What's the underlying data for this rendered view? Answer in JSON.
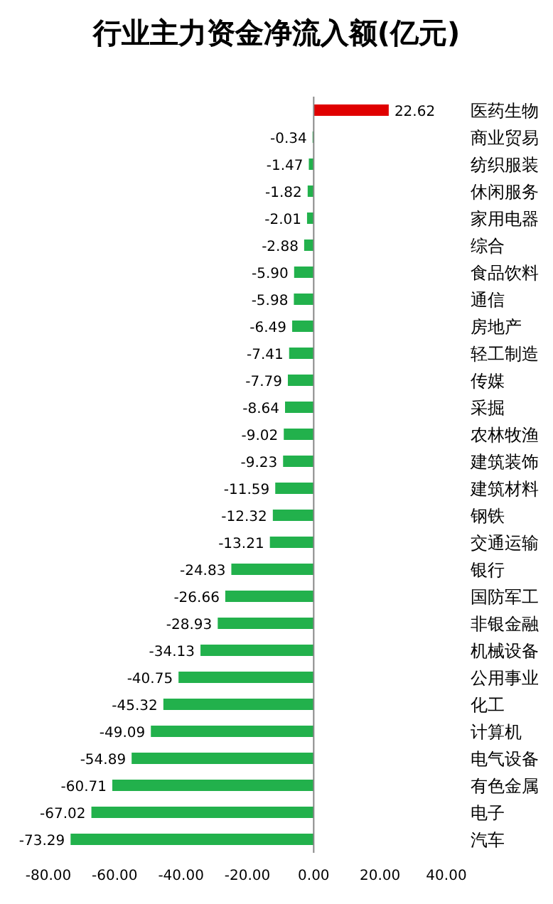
{
  "chart_data": {
    "type": "bar",
    "orientation": "horizontal",
    "title": "行业主力资金净流入额(亿元)",
    "categories": [
      "医药生物",
      "商业贸易",
      "纺织服装",
      "休闲服务",
      "家用电器",
      "综合",
      "食品饮料",
      "通信",
      "房地产",
      "轻工制造",
      "传媒",
      "采掘",
      "农林牧渔",
      "建筑装饰",
      "建筑材料",
      "钢铁",
      "交通运输",
      "银行",
      "国防军工",
      "非银金融",
      "机械设备",
      "公用事业",
      "化工",
      "计算机",
      "电气设备",
      "有色金属",
      "电子",
      "汽车"
    ],
    "values": [
      22.62,
      -0.34,
      -1.47,
      -1.82,
      -2.01,
      -2.88,
      -5.9,
      -5.98,
      -6.49,
      -7.41,
      -7.79,
      -8.64,
      -9.02,
      -9.23,
      -11.59,
      -12.32,
      -13.21,
      -24.83,
      -26.66,
      -28.93,
      -34.13,
      -40.75,
      -45.32,
      -49.09,
      -54.89,
      -60.71,
      -67.02,
      -73.29
    ],
    "value_labels": [
      "22.62",
      "-0.34",
      "-1.47",
      "-1.82",
      "-2.01",
      "-2.88",
      "-5.90",
      "-5.98",
      "-6.49",
      "-7.41",
      "-7.79",
      "-8.64",
      "-9.02",
      "-9.23",
      "-11.59",
      "-12.32",
      "-13.21",
      "-24.83",
      "-26.66",
      "-28.93",
      "-34.13",
      "-40.75",
      "-45.32",
      "-49.09",
      "-54.89",
      "-60.71",
      "-67.02",
      "-73.29"
    ],
    "colors": [
      "#e00000",
      "#22b14c",
      "#22b14c",
      "#22b14c",
      "#22b14c",
      "#22b14c",
      "#22b14c",
      "#22b14c",
      "#22b14c",
      "#22b14c",
      "#22b14c",
      "#22b14c",
      "#22b14c",
      "#22b14c",
      "#22b14c",
      "#22b14c",
      "#22b14c",
      "#22b14c",
      "#22b14c",
      "#22b14c",
      "#22b14c",
      "#22b14c",
      "#22b14c",
      "#22b14c",
      "#22b14c",
      "#22b14c",
      "#22b14c",
      "#22b14c"
    ],
    "xlim": [
      -80,
      40
    ],
    "xticks": [
      {
        "value": -80,
        "label": "-80.00"
      },
      {
        "value": -60,
        "label": "-60.00"
      },
      {
        "value": -40,
        "label": "-40.00"
      },
      {
        "value": -20,
        "label": "-20.00"
      },
      {
        "value": 0,
        "label": "0.00"
      },
      {
        "value": 20,
        "label": "20.00"
      },
      {
        "value": 40,
        "label": "40.00"
      }
    ],
    "tick_labels": "x"
  }
}
